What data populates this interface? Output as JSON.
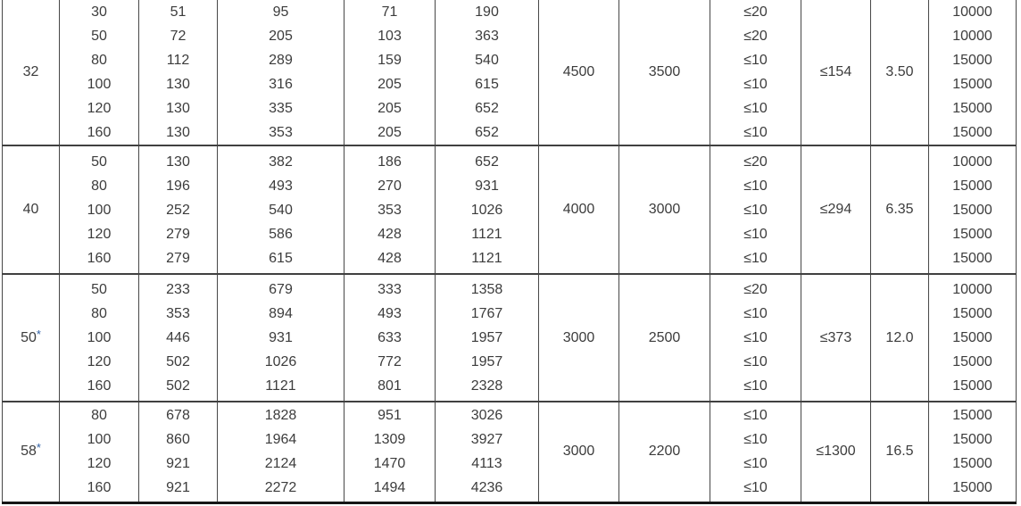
{
  "styles": {
    "border_color": "#474747",
    "text_color": "#3c3c3c",
    "bottom_border_color": "#161616",
    "asterisk_color": "#2e5fa3",
    "background": "#ffffff"
  },
  "chart_data": {
    "type": "table",
    "has_visible_header": false,
    "legend": "Cropped table: each row group has a merged first column label, five per-row numeric columns, two merged columns, a per-row limit column, two merged columns, and a per-row count column.",
    "row_groups": [
      {
        "label": "32",
        "rows": [
          [
            "30",
            "51",
            "95",
            "71",
            "190",
            "≤20",
            "10000"
          ],
          [
            "50",
            "72",
            "205",
            "103",
            "363",
            "≤20",
            "10000"
          ],
          [
            "80",
            "112",
            "289",
            "159",
            "540",
            "≤10",
            "15000"
          ],
          [
            "100",
            "130",
            "316",
            "205",
            "615",
            "≤10",
            "15000"
          ],
          [
            "120",
            "130",
            "335",
            "205",
            "652",
            "≤10",
            "15000"
          ],
          [
            "160",
            "130",
            "353",
            "205",
            "652",
            "≤10",
            "15000"
          ]
        ],
        "merged": [
          "4500",
          "3500",
          "≤154",
          "3.50"
        ]
      },
      {
        "label": "40",
        "rows": [
          [
            "50",
            "130",
            "382",
            "186",
            "652",
            "≤20",
            "10000"
          ],
          [
            "80",
            "196",
            "493",
            "270",
            "931",
            "≤10",
            "15000"
          ],
          [
            "100",
            "252",
            "540",
            "353",
            "1026",
            "≤10",
            "15000"
          ],
          [
            "120",
            "279",
            "586",
            "428",
            "1121",
            "≤10",
            "15000"
          ],
          [
            "160",
            "279",
            "615",
            "428",
            "1121",
            "≤10",
            "15000"
          ]
        ],
        "merged": [
          "4000",
          "3000",
          "≤294",
          "6.35"
        ]
      },
      {
        "label": "50*",
        "rows": [
          [
            "50",
            "233",
            "679",
            "333",
            "1358",
            "≤20",
            "10000"
          ],
          [
            "80",
            "353",
            "894",
            "493",
            "1767",
            "≤10",
            "15000"
          ],
          [
            "100",
            "446",
            "931",
            "633",
            "1957",
            "≤10",
            "15000"
          ],
          [
            "120",
            "502",
            "1026",
            "772",
            "1957",
            "≤10",
            "15000"
          ],
          [
            "160",
            "502",
            "1121",
            "801",
            "2328",
            "≤10",
            "15000"
          ]
        ],
        "merged": [
          "3000",
          "2500",
          "≤373",
          "12.0"
        ]
      },
      {
        "label": "58*",
        "rows": [
          [
            "80",
            "678",
            "1828",
            "951",
            "3026",
            "≤10",
            "15000"
          ],
          [
            "100",
            "860",
            "1964",
            "1309",
            "3927",
            "≤10",
            "15000"
          ],
          [
            "120",
            "921",
            "2124",
            "1470",
            "4113",
            "≤10",
            "15000"
          ],
          [
            "160",
            "921",
            "2272",
            "1494",
            "4236",
            "≤10",
            "15000"
          ]
        ],
        "merged": [
          "3000",
          "2200",
          "≤1300",
          "16.5"
        ]
      }
    ]
  }
}
